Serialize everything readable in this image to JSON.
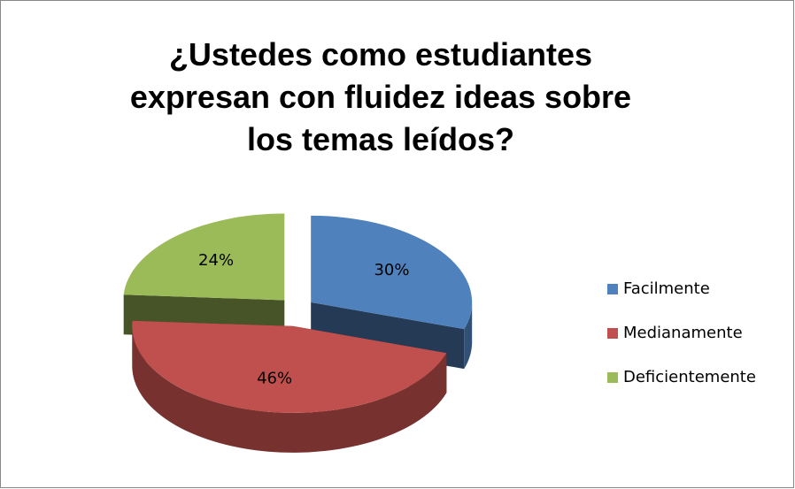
{
  "chart_data": {
    "type": "pie",
    "title": "¿Ustedes como estudiantes expresan con fluidez ideas sobre los temas leídos?",
    "categories": [
      "Facilmente",
      "Medianamente",
      "Deficientemente"
    ],
    "values": [
      30,
      46,
      24
    ],
    "value_labels": [
      "30%",
      "46%",
      "24%"
    ],
    "colors": [
      "#4f81bd",
      "#c0504d",
      "#9bbb59"
    ],
    "legend": "right"
  }
}
